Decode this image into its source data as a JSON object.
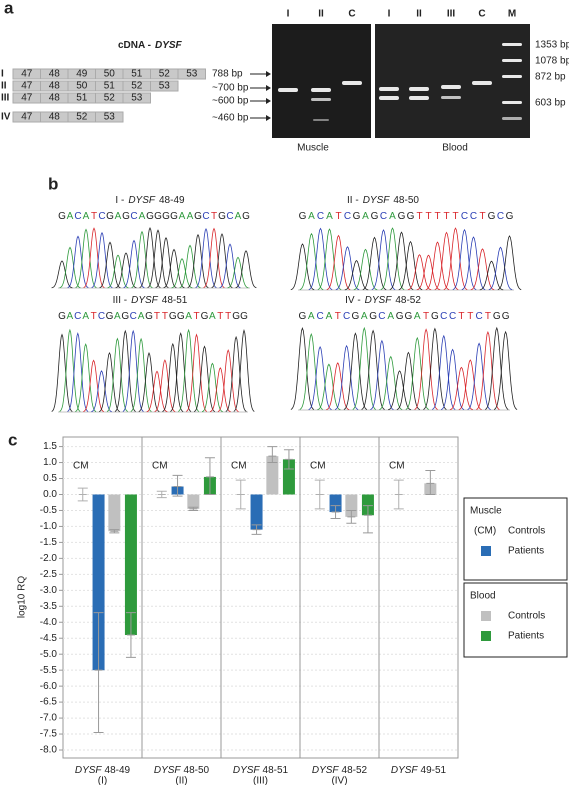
{
  "panel_a": {
    "label": "a",
    "cdna_title": {
      "prefix": "cDNA -",
      "gene": "DYSF"
    },
    "transcripts": [
      {
        "id": "I",
        "exons": [
          "47",
          "48",
          "49",
          "50",
          "51",
          "52",
          "53"
        ],
        "size": "788 bp"
      },
      {
        "id": "II",
        "exons": [
          "47",
          "48",
          "50",
          "51",
          "52",
          "53"
        ],
        "size": "~700 bp"
      },
      {
        "id": "III",
        "exons": [
          "47",
          "48",
          "51",
          "52",
          "53"
        ],
        "size": "~600 bp"
      },
      {
        "id": "IV",
        "exons": [
          "47",
          "48",
          "52",
          "53"
        ],
        "size": "~460 bp"
      }
    ],
    "gel": {
      "lanes_muscle": [
        "I",
        "II",
        "C"
      ],
      "lanes_blood": [
        "I",
        "II",
        "III",
        "C",
        "M"
      ],
      "tissue_labels": [
        "Muscle",
        "Blood"
      ],
      "ladder": [
        "1353 bp",
        "1078 bp",
        "872 bp",
        "603 bp"
      ]
    }
  },
  "panel_b": {
    "label": "b",
    "base_colors": {
      "A": "#2e9a3c",
      "C": "#2b3fb5",
      "G": "#222222",
      "T": "#d9262b"
    },
    "chromatograms": [
      {
        "prefix": "I -",
        "gene": "DYSF",
        "exons": "48-49",
        "sequence": "GACATCGAGCAGGGGAAGCTGCAG"
      },
      {
        "prefix": "II -",
        "gene": "DYSF",
        "exons": "48-50",
        "sequence": "GACATCGAGCAGGTTTTTCCTGCG"
      },
      {
        "prefix": "III -",
        "gene": "DYSF",
        "exons": "48-51",
        "sequence": "GACATCGAGCAGTTGGATGATTGG"
      },
      {
        "prefix": "IV -",
        "gene": "DYSF",
        "exons": "48-52",
        "sequence": "GACATCGAGCAGGATGCCTTCTGG"
      }
    ]
  },
  "chart_data": {
    "type": "bar",
    "panel_label": "c",
    "ylabel": "log10 RQ",
    "categories": [
      {
        "gene": "DYSF",
        "exons": "48-49",
        "sub": "(I)"
      },
      {
        "gene": "DYSF",
        "exons": "48-50",
        "sub": "(II)"
      },
      {
        "gene": "DYSF",
        "exons": "48-51",
        "sub": "(III)"
      },
      {
        "gene": "DYSF",
        "exons": "48-52",
        "sub": "(IV)"
      },
      {
        "gene": "DYSF",
        "exons": "49-51"
      }
    ],
    "series": [
      {
        "name": "Controls",
        "group": "Muscle",
        "label": "CM",
        "legend_symbol": "(CM)",
        "style": "errorbar",
        "color": "#b0b0b0",
        "values": [
          0,
          0,
          0,
          0,
          0
        ],
        "err_low": [
          0.2,
          0.1,
          0.45,
          0.45,
          0.45
        ],
        "err_high": [
          0.2,
          0.1,
          0.45,
          0.45,
          0.45
        ]
      },
      {
        "name": "Patients",
        "group": "Muscle",
        "style": "bar",
        "color": "#2a6db5",
        "values": [
          -5.5,
          0.25,
          -1.1,
          -0.55,
          null
        ],
        "err_low": [
          1.95,
          0.3,
          0.15,
          0.2,
          null
        ],
        "err_high": [
          1.8,
          0.35,
          0.15,
          0.2,
          null
        ]
      },
      {
        "name": "Controls",
        "group": "Blood",
        "style": "bar",
        "color": "#c0c0c0",
        "values": [
          -1.15,
          -0.45,
          1.2,
          -0.7,
          0.35
        ],
        "err_low": [
          0.05,
          0.05,
          0.2,
          0.2,
          0.35
        ],
        "err_high": [
          0.05,
          0.05,
          0.3,
          0.2,
          0.4
        ]
      },
      {
        "name": "Patients",
        "group": "Blood",
        "style": "bar",
        "color": "#2e9a3c",
        "values": [
          -4.4,
          0.55,
          1.1,
          -0.65,
          null
        ],
        "err_low": [
          0.7,
          0.55,
          0.3,
          0.55,
          null
        ],
        "err_high": [
          0.7,
          0.6,
          0.3,
          0.3,
          null
        ]
      }
    ],
    "ylim": [
      -8.25,
      1.8
    ],
    "yticks": [
      1.5,
      {
        "value": 1,
        "label": "1.0"
      },
      0.5,
      {
        "value": 0,
        "label": "0.0"
      },
      -0.5,
      {
        "value": -1,
        "label": "-1.0"
      },
      -1.5,
      {
        "value": -2,
        "label": "-2.0"
      },
      -2.5,
      {
        "value": -3,
        "label": "-3.0"
      },
      -3.5,
      {
        "value": -4,
        "label": "-4.0"
      },
      -4.5,
      {
        "value": -5,
        "label": "-5.0"
      },
      -5.5,
      {
        "value": -6,
        "label": "-6.0"
      },
      -6.5,
      {
        "value": -7,
        "label": "-7.0"
      },
      -7.5,
      {
        "value": -8,
        "label": "-8.0"
      }
    ],
    "grid": true
  }
}
